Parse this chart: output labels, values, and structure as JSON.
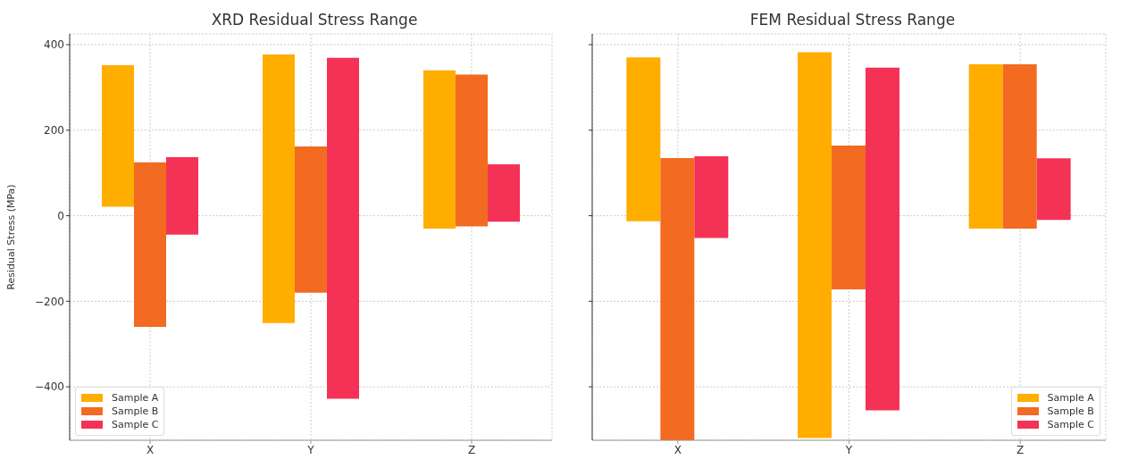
{
  "chart_data": [
    {
      "type": "bar",
      "title": "XRD Residual Stress Range",
      "ylabel": "Residual Stress (MPa)",
      "categories": [
        "X",
        "Y",
        "Z"
      ],
      "series": [
        {
          "name": "Sample A",
          "color": "#ffae00",
          "values": [
            331,
            628,
            370
          ],
          "base": [
            21,
            -251,
            -30
          ]
        },
        {
          "name": "Sample B",
          "color": "#f26b21",
          "values": [
            385,
            342,
            355
          ],
          "base": [
            -260,
            -180,
            -25
          ]
        },
        {
          "name": "Sample C",
          "color": "#f43256",
          "values": [
            181,
            797,
            134
          ],
          "base": [
            -44,
            -428,
            -14
          ]
        }
      ],
      "ylim": [
        -525,
        425
      ],
      "yticks": [
        -400,
        -200,
        0,
        200,
        400
      ],
      "grid": true,
      "legend": "bottom left"
    },
    {
      "type": "bar",
      "title": "FEM Residual Stress Range",
      "categories": [
        "X",
        "Y",
        "Z"
      ],
      "series": [
        {
          "name": "Sample A",
          "color": "#ffae00",
          "values": [
            383,
            902,
            384
          ],
          "base": [
            -13,
            -520,
            -30
          ]
        },
        {
          "name": "Sample B",
          "color": "#f26b21",
          "values": [
            660,
            336,
            384
          ],
          "base": [
            -525,
            -172,
            -30
          ]
        },
        {
          "name": "Sample C",
          "color": "#f43256",
          "values": [
            191,
            801,
            144
          ],
          "base": [
            -52,
            -455,
            -10
          ]
        }
      ],
      "ylim": [
        -525,
        425
      ],
      "yticks": [
        -400,
        -200,
        0,
        200,
        400
      ],
      "grid": true,
      "legend": "bottom right",
      "tick_labels": "x"
    }
  ]
}
